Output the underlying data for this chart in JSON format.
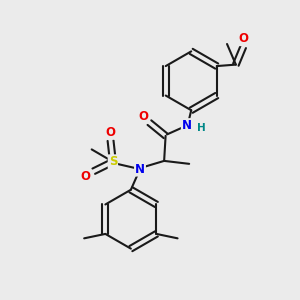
{
  "background_color": "#ebebeb",
  "bond_color": "#1a1a1a",
  "bond_width": 1.5,
  "atom_colors": {
    "N": "#0000ee",
    "O": "#ee0000",
    "S": "#cccc00",
    "H": "#008888",
    "C": "#1a1a1a"
  },
  "font_size_atom": 8.5
}
